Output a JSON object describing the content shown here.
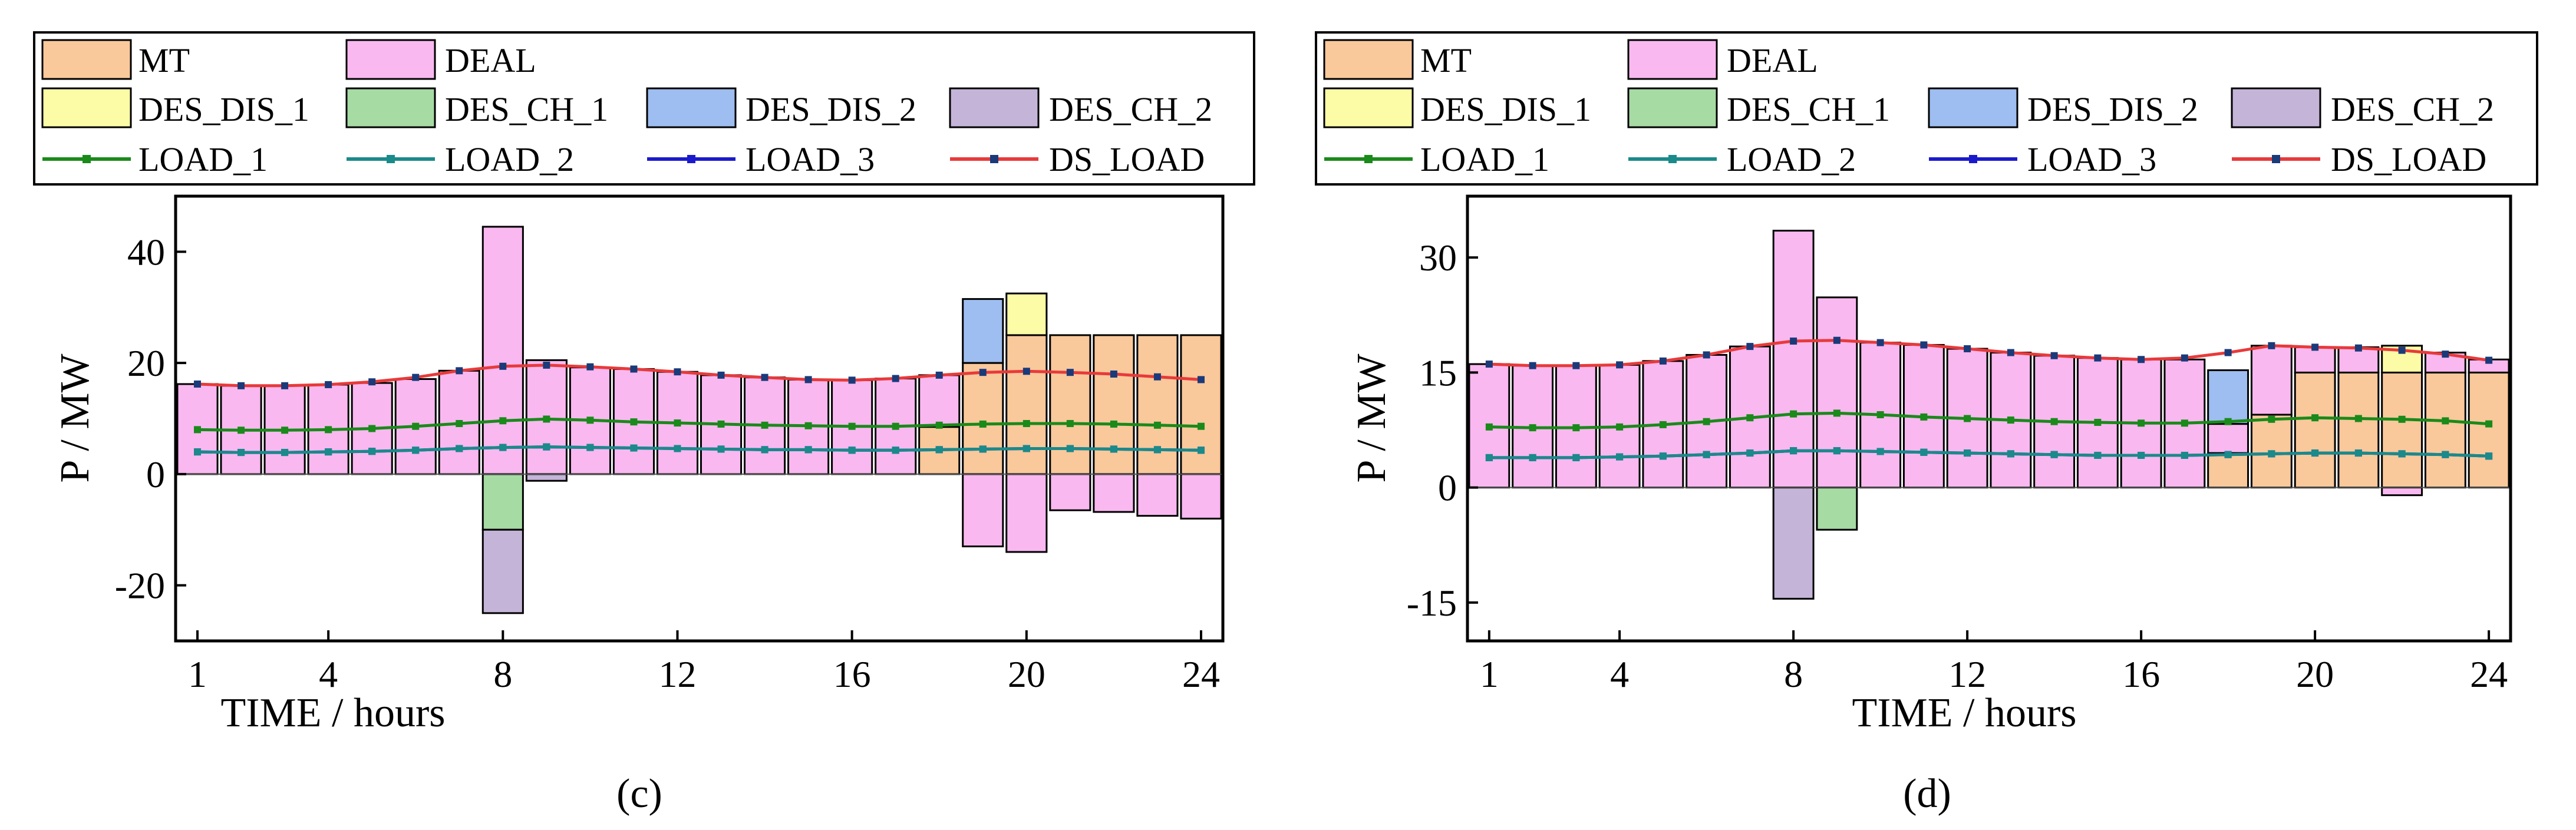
{
  "legend": {
    "mt": "MT",
    "deal": "DEAL",
    "des_dis_1": "DES_DIS_1",
    "des_ch_1": "DES_CH_1",
    "des_dis_2": "DES_DIS_2",
    "des_ch_2": "DES_CH_2",
    "load_1": "LOAD_1",
    "load_2": "LOAD_2",
    "load_3": "LOAD_3",
    "ds_load": "DS_LOAD"
  },
  "colors": {
    "mt": "#F9C89B",
    "deal": "#F9B8F0",
    "des_dis_1": "#FCFCA6",
    "des_ch_1": "#A6DBA4",
    "des_dis_2": "#9EBDF0",
    "des_ch_2": "#C4B4D8",
    "load_1": "#1A8A1A",
    "load_2": "#1A8A8A",
    "load_3": "#1A1ACC",
    "ds_load": "#E83A3A"
  },
  "chart_data": [
    {
      "id": "c",
      "caption": "(c)",
      "type": "bar",
      "xlabel": "TIME / hours",
      "ylabel": "P / MW",
      "xlim": [
        0.5,
        24.5
      ],
      "ylim": [
        -30,
        50
      ],
      "xticks": [
        1,
        4,
        8,
        12,
        16,
        20,
        24
      ],
      "yticks": [
        -20,
        0,
        20,
        40
      ],
      "x": [
        1,
        2,
        3,
        4,
        5,
        6,
        7,
        8,
        9,
        10,
        11,
        12,
        13,
        14,
        15,
        16,
        17,
        18,
        19,
        20,
        21,
        22,
        23,
        24
      ],
      "series": [
        {
          "name": "MT",
          "values": [
            0,
            0,
            0,
            0,
            0,
            0,
            0,
            0,
            0,
            0,
            0,
            0,
            0,
            0,
            0,
            0,
            0,
            8.5,
            20,
            25,
            25,
            25,
            25,
            25
          ]
        },
        {
          "name": "DEAL",
          "values": [
            16.2,
            15.9,
            15.9,
            16.1,
            16.4,
            17.1,
            18.6,
            44.5,
            20.5,
            19.2,
            18.9,
            18.4,
            17.8,
            17.4,
            17,
            16.9,
            17.2,
            9.3,
            -13,
            -14,
            -6.5,
            -6.8,
            -7.5,
            -8
          ]
        },
        {
          "name": "DES_DIS_1",
          "values": [
            0,
            0,
            0,
            0,
            0,
            0,
            0,
            0,
            0,
            0,
            0,
            0,
            0,
            0,
            0,
            0,
            0,
            0,
            0,
            7.5,
            0,
            0,
            0,
            0
          ]
        },
        {
          "name": "DES_CH_1",
          "values": [
            0,
            0,
            0,
            0,
            0,
            0,
            0,
            -10,
            0,
            0,
            0,
            0,
            0,
            0,
            0,
            0,
            0,
            0,
            0,
            0,
            0,
            0,
            0,
            0
          ]
        },
        {
          "name": "DES_DIS_2",
          "values": [
            0,
            0,
            0,
            0,
            0,
            0,
            0,
            0,
            0,
            0,
            0,
            0,
            0,
            0,
            0,
            0,
            0,
            0,
            11.5,
            0,
            0,
            0,
            0,
            0
          ]
        },
        {
          "name": "DES_CH_2",
          "values": [
            0,
            0,
            0,
            0,
            0,
            0,
            0,
            -15,
            -1.2,
            0,
            0,
            0,
            0,
            0,
            0,
            0,
            0,
            0,
            0,
            0,
            0,
            0,
            0,
            0
          ]
        },
        {
          "name": "LOAD_1",
          "values": [
            8,
            7.9,
            7.9,
            8,
            8.2,
            8.6,
            9.1,
            9.6,
            9.9,
            9.7,
            9.4,
            9.2,
            9,
            8.8,
            8.7,
            8.6,
            8.6,
            8.8,
            9,
            9.1,
            9.1,
            9,
            8.8,
            8.6
          ]
        },
        {
          "name": "LOAD_2",
          "values": [
            4,
            3.9,
            3.9,
            4,
            4.1,
            4.3,
            4.6,
            4.8,
            4.9,
            4.8,
            4.7,
            4.6,
            4.5,
            4.4,
            4.4,
            4.3,
            4.3,
            4.4,
            4.5,
            4.6,
            4.6,
            4.5,
            4.4,
            4.3
          ]
        },
        {
          "name": "LOAD_3",
          "values": [
            4,
            3.9,
            3.9,
            4,
            4.1,
            4.3,
            4.6,
            4.8,
            4.9,
            4.8,
            4.7,
            4.6,
            4.5,
            4.4,
            4.4,
            4.3,
            4.3,
            4.4,
            4.5,
            4.6,
            4.6,
            4.5,
            4.4,
            4.3
          ]
        },
        {
          "name": "DS_LOAD",
          "values": [
            16.2,
            15.9,
            15.9,
            16.1,
            16.6,
            17.4,
            18.6,
            19.4,
            19.6,
            19.3,
            18.9,
            18.4,
            17.8,
            17.4,
            17,
            16.9,
            17.2,
            17.8,
            18.3,
            18.5,
            18.3,
            18,
            17.5,
            17
          ]
        }
      ]
    },
    {
      "id": "d",
      "caption": "(d)",
      "type": "bar",
      "xlabel": "TIME / hours",
      "ylabel": "P / MW",
      "xlim": [
        0.5,
        24.5
      ],
      "ylim": [
        -20,
        38
      ],
      "xticks": [
        1,
        4,
        8,
        12,
        16,
        20,
        24
      ],
      "yticks": [
        -15,
        0,
        15,
        30
      ],
      "x": [
        1,
        2,
        3,
        4,
        5,
        6,
        7,
        8,
        9,
        10,
        11,
        12,
        13,
        14,
        15,
        16,
        17,
        18,
        19,
        20,
        21,
        22,
        23,
        24
      ],
      "series": [
        {
          "name": "MT",
          "values": [
            0,
            0,
            0,
            0,
            0,
            0,
            0,
            0,
            0,
            0,
            0,
            0,
            0,
            0,
            0,
            0,
            0,
            4.5,
            9.5,
            15,
            15,
            15,
            15,
            15
          ]
        },
        {
          "name": "DEAL",
          "values": [
            16.1,
            15.9,
            15.9,
            16,
            16.5,
            17.3,
            18.4,
            33.5,
            24.8,
            18.9,
            18.6,
            18.1,
            17.6,
            17.2,
            16.9,
            16.7,
            16.7,
            3.8,
            9,
            3.3,
            3.3,
            -1,
            2.6,
            1.7
          ]
        },
        {
          "name": "DES_DIS_1",
          "values": [
            0,
            0,
            0,
            0,
            0,
            0,
            0,
            0,
            0,
            0,
            0,
            0,
            0,
            0,
            0,
            0,
            0,
            0,
            0,
            0,
            0,
            3.5,
            0,
            0
          ]
        },
        {
          "name": "DES_CH_1",
          "values": [
            0,
            0,
            0,
            0,
            0,
            0,
            0,
            0,
            -5.5,
            0,
            0,
            0,
            0,
            0,
            0,
            0,
            0,
            0,
            0,
            0,
            0,
            0,
            0,
            0
          ]
        },
        {
          "name": "DES_DIS_2",
          "values": [
            0,
            0,
            0,
            0,
            0,
            0,
            0,
            0,
            0,
            0,
            0,
            0,
            0,
            0,
            0,
            0,
            0,
            7,
            0,
            0,
            0,
            0,
            0,
            0
          ]
        },
        {
          "name": "DES_CH_2",
          "values": [
            0,
            0,
            0,
            0,
            0,
            0,
            0,
            -14.5,
            0,
            0,
            0,
            0,
            0,
            0,
            0,
            0,
            0,
            0,
            0,
            0,
            0,
            0,
            0,
            0
          ]
        },
        {
          "name": "LOAD_1",
          "values": [
            7.9,
            7.8,
            7.8,
            7.9,
            8.2,
            8.6,
            9.1,
            9.6,
            9.7,
            9.5,
            9.2,
            9,
            8.8,
            8.6,
            8.5,
            8.4,
            8.4,
            8.6,
            8.9,
            9.1,
            9,
            8.9,
            8.7,
            8.3
          ]
        },
        {
          "name": "LOAD_2",
          "values": [
            3.9,
            3.9,
            3.9,
            4,
            4.1,
            4.3,
            4.5,
            4.8,
            4.8,
            4.7,
            4.6,
            4.5,
            4.4,
            4.3,
            4.2,
            4.2,
            4.2,
            4.3,
            4.4,
            4.5,
            4.5,
            4.4,
            4.3,
            4.1
          ]
        },
        {
          "name": "LOAD_3",
          "values": [
            3.9,
            3.9,
            3.9,
            4,
            4.1,
            4.3,
            4.5,
            4.8,
            4.8,
            4.7,
            4.6,
            4.5,
            4.4,
            4.3,
            4.2,
            4.2,
            4.2,
            4.3,
            4.4,
            4.5,
            4.5,
            4.4,
            4.3,
            4.1
          ]
        },
        {
          "name": "DS_LOAD",
          "values": [
            16.1,
            15.9,
            15.9,
            16,
            16.5,
            17.3,
            18.4,
            19.1,
            19.2,
            18.9,
            18.6,
            18.1,
            17.6,
            17.2,
            16.9,
            16.7,
            16.9,
            17.6,
            18.5,
            18.3,
            18.2,
            17.9,
            17.4,
            16.6
          ]
        }
      ]
    }
  ]
}
